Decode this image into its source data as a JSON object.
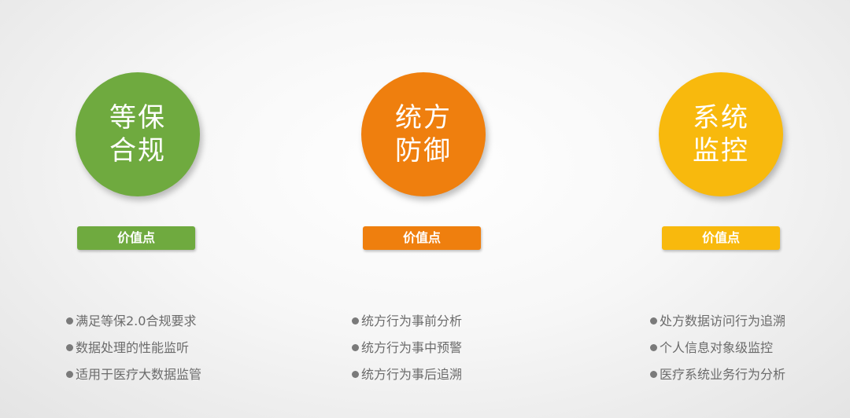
{
  "columns": [
    {
      "title_line1": "等保",
      "title_line2": "合规",
      "badge": "价值点",
      "color": "#6faa3f",
      "items": [
        "满足等保2.0合规要求",
        "数据处理的性能监听",
        "适用于医疗大数据监管"
      ]
    },
    {
      "title_line1": "统方",
      "title_line2": "防御",
      "badge": "价值点",
      "color": "#ef7f0e",
      "items": [
        "统方行为事前分析",
        "统方行为事中预警",
        "统方行为事后追溯"
      ]
    },
    {
      "title_line1": "系统",
      "title_line2": "监控",
      "badge": "价值点",
      "color": "#f8b90d",
      "items": [
        "处方数据访问行为追溯",
        "个人信息对象级监控",
        "医疗系统业务行为分析"
      ]
    }
  ],
  "bullet_color": "#7a7a7a",
  "text_color": "#6b6b6b"
}
